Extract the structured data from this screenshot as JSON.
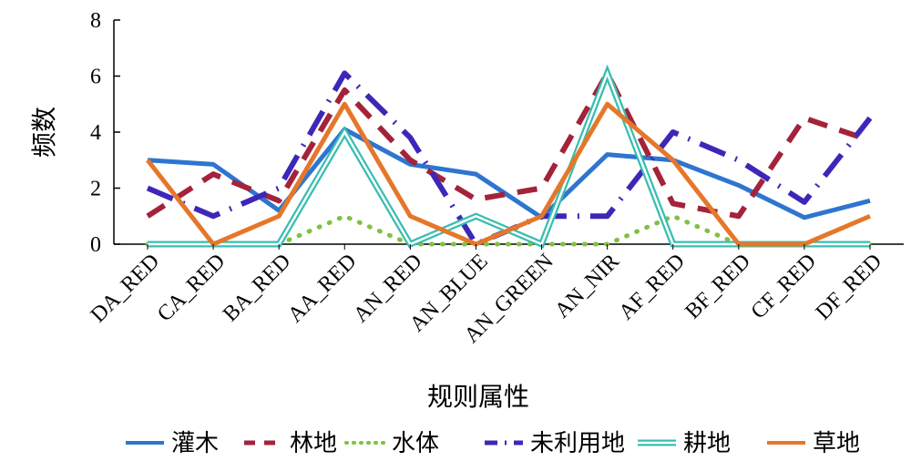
{
  "chart_data": {
    "type": "line",
    "xlabel": "规则属性",
    "ylabel": "频数",
    "ylim": [
      0,
      8
    ],
    "yticks": [
      "0",
      "2",
      "4",
      "6",
      "8"
    ],
    "grid": false,
    "legend_position": "bottom",
    "categories": [
      "DA_RED",
      "CA_RED",
      "BA_RED",
      "AA_RED",
      "AN_RED",
      "AN_BLUE",
      "AN_GREEN",
      "AN_NIR",
      "AF_RED",
      "BF_RED",
      "CF_RED",
      "DF_RED"
    ],
    "series": [
      {
        "name": "灌木",
        "color": "#2E75D0",
        "style": "solid",
        "values": [
          3,
          2.85,
          1.2,
          4.1,
          2.85,
          2.5,
          0.95,
          3.2,
          3,
          2.1,
          0.95,
          1.55
        ]
      },
      {
        "name": "林地",
        "color": "#A3233A",
        "style": "dashed",
        "values": [
          1,
          2.5,
          1.55,
          5.5,
          3,
          1.6,
          2,
          6.1,
          1.45,
          1,
          4.5,
          3.7
        ]
      },
      {
        "name": "水体",
        "color": "#7FC241",
        "style": "dotted",
        "values": [
          0,
          0,
          0,
          1,
          0,
          0,
          0,
          0,
          1,
          0,
          0,
          0
        ]
      },
      {
        "name": "未利用地",
        "color": "#3D27B8",
        "style": "dashdot",
        "values": [
          2,
          1,
          2,
          6.1,
          3.8,
          0,
          1,
          1,
          4,
          3,
          1.5,
          4.5
        ]
      },
      {
        "name": "耕地",
        "color": "#38BDB0",
        "style": "double",
        "values": [
          0,
          0,
          0,
          4,
          0,
          1,
          0,
          6.1,
          0,
          0,
          0,
          0
        ]
      },
      {
        "name": "草地",
        "color": "#E5772B",
        "style": "solid",
        "values": [
          3,
          0,
          1,
          5,
          1,
          0,
          1,
          5,
          3,
          0,
          0,
          1
        ]
      }
    ]
  }
}
